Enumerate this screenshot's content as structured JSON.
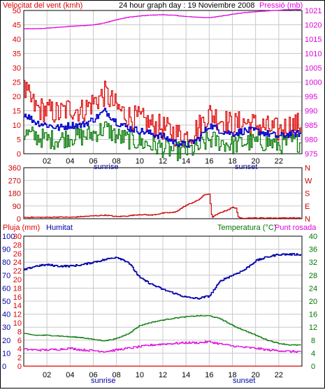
{
  "colors": {
    "wind": "#dd0000",
    "wind_avg": "#0000cc",
    "wind_min": "#007700",
    "pressure": "#dd00dd",
    "humidity": "#0000aa",
    "temperature": "#007700",
    "dewpoint": "#dd00dd",
    "rain": "#dd0000",
    "direction": "#cc0000",
    "axis_text": "#000000"
  },
  "chart_data": [
    {
      "type": "line",
      "title": "24 hour graph day : 19 Noviembre 2008",
      "left_axis_label": "Velocitat del vent (kmh)",
      "right_axis_label": "Pressió (mb)",
      "left_ticks": [
        "0",
        "5",
        "10",
        "15",
        "20",
        "25",
        "30",
        "35",
        "40",
        "45",
        "50"
      ],
      "right_ticks": [
        "975",
        "980",
        "985",
        "990",
        "995",
        "1000",
        "1005",
        "1010",
        "1015",
        "1020",
        "1021"
      ],
      "ylim_left": [
        0,
        50
      ],
      "ylim_right": [
        975,
        1022
      ],
      "x_ticks": [
        "02",
        "04",
        "06",
        "08",
        "10",
        "12",
        "14",
        "16",
        "18",
        "20",
        "22"
      ],
      "x_annotations": [
        "sunrise",
        "sunset"
      ],
      "grid": true,
      "x_hours": [
        0,
        1,
        2,
        3,
        4,
        5,
        6,
        7,
        8,
        9,
        10,
        11,
        12,
        13,
        14,
        15,
        16,
        17,
        18,
        19,
        20,
        21,
        22,
        23
      ],
      "series": [
        {
          "key": "pressure",
          "values": [
            1016.0,
            1016.0,
            1016.2,
            1016.5,
            1016.8,
            1017.0,
            1017.3,
            1018.0,
            1019.0,
            1019.8,
            1020.2,
            1020.5,
            1020.6,
            1020.4,
            1020.0,
            1019.8,
            1019.6,
            1020.2,
            1020.8,
            1021.3,
            1021.6,
            1021.9,
            1022.1,
            1022.3
          ]
        },
        {
          "key": "wind_max",
          "values": [
            22,
            16,
            15,
            14,
            16,
            15,
            18,
            21,
            16,
            13,
            12,
            10,
            9,
            7,
            6,
            9,
            14,
            12,
            10,
            11,
            10,
            9,
            8,
            10
          ]
        },
        {
          "key": "wind_avg",
          "values": [
            14,
            11,
            10,
            9,
            10,
            10,
            12,
            15,
            11,
            9,
            8,
            7,
            6,
            4,
            3,
            5,
            10,
            8,
            7,
            8,
            8,
            7,
            6,
            7
          ]
        },
        {
          "key": "wind_min",
          "values": [
            7,
            6,
            5,
            5,
            6,
            6,
            7,
            9,
            6,
            5,
            4,
            3,
            2,
            1,
            1,
            2,
            5,
            4,
            3,
            4,
            4,
            4,
            3,
            4
          ]
        }
      ]
    },
    {
      "type": "line",
      "title": "",
      "left_ticks": [
        "0",
        "90",
        "180",
        "270",
        "360"
      ],
      "right_ticks": [
        "N",
        "E",
        "S",
        "W",
        "N"
      ],
      "ylim": [
        0,
        360
      ],
      "x_hours": [
        0,
        1,
        2,
        3,
        4,
        5,
        6,
        7,
        8,
        9,
        10,
        11,
        12,
        13,
        14,
        15,
        15.6,
        16,
        16.2,
        17,
        17.5,
        18,
        18.3,
        18.5,
        19,
        20,
        21,
        22,
        23
      ],
      "series": [
        {
          "key": "direction",
          "values": [
            10,
            10,
            10,
            12,
            10,
            15,
            20,
            25,
            15,
            20,
            30,
            25,
            40,
            45,
            95,
            130,
            170,
            175,
            10,
            45,
            60,
            80,
            75,
            5,
            5,
            5,
            5,
            5,
            5
          ]
        }
      ]
    },
    {
      "type": "line",
      "title": "",
      "left_axis_label": "Pluja (mm)",
      "left2_axis_label": "Humitat",
      "right_axis_label": "Temperatura (°C)",
      "right2_axis_label": "Punt rosada",
      "left_ticks_rain": [
        "0",
        "2",
        "4",
        "6",
        "8",
        "10",
        "12",
        "14",
        "16",
        "18",
        "20",
        "22",
        "24",
        "26",
        "28",
        "30"
      ],
      "left_ticks_hum": [
        "0",
        "10",
        "20",
        "30",
        "40",
        "50",
        "60",
        "70",
        "80",
        "90",
        "100"
      ],
      "right_ticks": [
        "0",
        "2",
        "4",
        "6",
        "8",
        "10",
        "12",
        "14",
        "16",
        "18",
        "20",
        "22",
        "24",
        "26",
        "28",
        "30",
        "32",
        "34",
        "36",
        "38",
        "40"
      ],
      "ylim_rain": [
        0,
        30
      ],
      "ylim_hum": [
        0,
        100
      ],
      "ylim_temp": [
        0,
        40
      ],
      "x_ticks": [
        "02",
        "04",
        "06",
        "08",
        "10",
        "12",
        "14",
        "16",
        "18",
        "20",
        "22"
      ],
      "x_annotations": [
        "sunrise",
        "sunset"
      ],
      "x_hours": [
        0,
        1,
        2,
        3,
        4,
        5,
        6,
        7,
        8,
        9,
        10,
        11,
        12,
        13,
        14,
        15,
        16,
        17,
        18,
        19,
        20,
        21,
        22,
        23
      ],
      "series": [
        {
          "key": "humidity",
          "values": [
            74,
            77,
            78,
            77,
            77,
            78,
            80,
            82,
            84,
            80,
            68,
            63,
            59,
            56,
            53,
            52,
            54,
            66,
            70,
            74,
            81,
            84,
            86,
            86
          ]
        },
        {
          "key": "temperature",
          "values": [
            10.0,
            9.5,
            9.5,
            9.3,
            9.0,
            8.8,
            8.2,
            7.8,
            8.5,
            10.0,
            12.5,
            13.5,
            14.2,
            14.8,
            15.2,
            15.5,
            15.5,
            14.5,
            12.5,
            11.0,
            9.5,
            8.0,
            7.0,
            6.5
          ]
        },
        {
          "key": "dewpoint",
          "values": [
            5.2,
            5.0,
            5.0,
            5.2,
            5.5,
            5.0,
            4.8,
            4.5,
            5.0,
            5.5,
            6.0,
            6.5,
            6.8,
            7.0,
            7.2,
            7.2,
            7.5,
            6.8,
            6.2,
            5.8,
            5.5,
            5.0,
            4.8,
            4.5
          ]
        },
        {
          "key": "rain",
          "values": [
            0,
            0,
            0,
            0,
            0,
            0,
            0,
            0,
            0,
            0,
            0,
            0,
            0,
            0,
            0,
            0,
            0,
            0,
            0,
            0,
            0,
            0,
            0,
            0
          ]
        }
      ]
    }
  ]
}
